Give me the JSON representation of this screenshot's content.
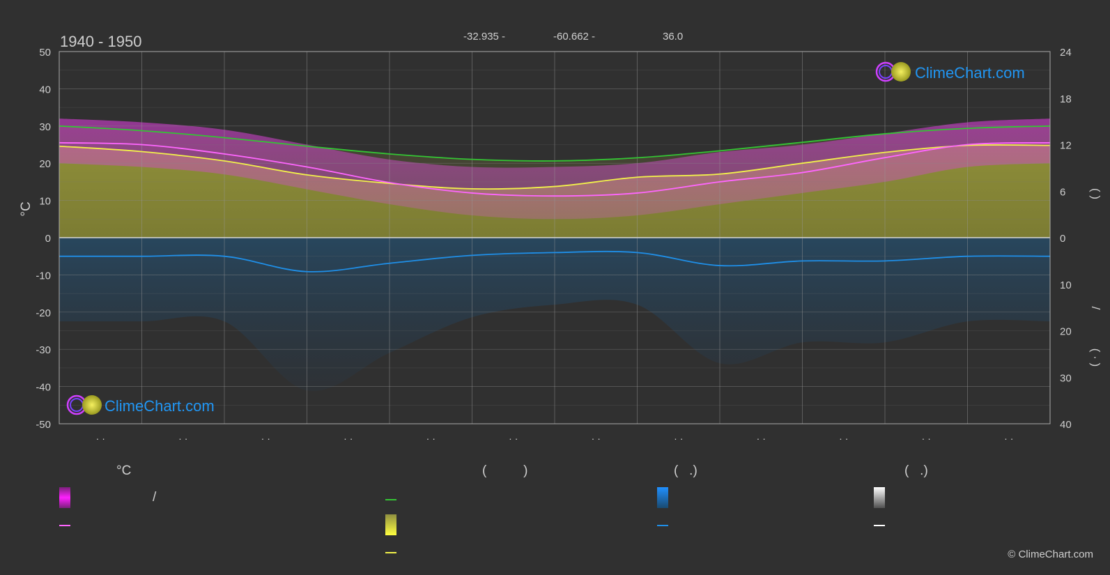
{
  "header": {
    "period": "1940 - 1950",
    "latitude": "-32.935 -",
    "longitude": "-60.662 -",
    "elevation": "36.0"
  },
  "logo": {
    "text": "ClimeChart.com"
  },
  "copyright": "© ClimeChart.com",
  "axes": {
    "left_label": "°C",
    "left_ticks": [
      50,
      40,
      30,
      20,
      10,
      0,
      -10,
      -20,
      -30,
      -40,
      -50
    ],
    "right_top_ticks": [
      24,
      18,
      12,
      6,
      0
    ],
    "right_bottom_ticks": [
      10,
      20,
      30,
      40
    ],
    "right_top_label": "(   )",
    "right_bottom_label": "(  ·  )",
    "right_slash": "/",
    "month_tick_label": "· ·"
  },
  "legend": {
    "col1_header": "°C",
    "col1_slash": "/",
    "col2_header": "(          )",
    "col3_header": "(   .)",
    "col4_header": "(   .)"
  },
  "colors": {
    "background": "#303030",
    "daylight": "#34c534",
    "sunshine": "#f2f24a",
    "temp_mean": "#ff66ff",
    "temp_range": "#e040e0",
    "precip": "#1f8fe8",
    "snow": "#ffffff",
    "logo": "#2196f3"
  },
  "chart_data": {
    "type": "line",
    "x_months": 12,
    "ylim_left": [
      -50,
      50
    ],
    "ylim_right_top": [
      0,
      24
    ],
    "ylim_right_bottom": [
      0,
      40
    ],
    "series": [
      {
        "key": "daylight",
        "x": [
          0,
          1,
          2,
          3,
          4,
          5,
          6,
          7,
          8,
          9,
          10,
          11,
          12
        ],
        "values": [
          14.4,
          13.8,
          12.9,
          11.8,
          10.8,
          10.1,
          9.9,
          10.3,
          11.2,
          12.3,
          13.4,
          14.1,
          14.4
        ]
      },
      {
        "key": "sunshine",
        "x": [
          0,
          1,
          2,
          3,
          4,
          5,
          6,
          7,
          8,
          9,
          10,
          11,
          12
        ],
        "values": [
          11.8,
          11.1,
          9.9,
          8.1,
          7.0,
          6.3,
          6.6,
          7.8,
          8.2,
          9.6,
          11.0,
          11.9,
          11.9
        ]
      },
      {
        "key": "temp_mean",
        "x": [
          0,
          1,
          2,
          3,
          4,
          5,
          6,
          7,
          8,
          9,
          10,
          11,
          12
        ],
        "values": [
          25.5,
          25.0,
          22.5,
          19.0,
          14.8,
          12.0,
          11.2,
          12.0,
          15.0,
          17.5,
          21.5,
          25.0,
          25.5
        ]
      },
      {
        "key": "precip",
        "x": [
          0,
          1,
          2,
          3,
          4,
          5,
          6,
          7,
          8,
          9,
          10,
          11,
          12
        ],
        "values": [
          4.0,
          4.0,
          4.0,
          7.3,
          5.5,
          3.8,
          3.2,
          3.2,
          6.0,
          5.0,
          5.0,
          4.0,
          4.0
        ]
      }
    ],
    "temp_band": {
      "x": [
        0,
        1,
        2,
        3,
        4,
        5,
        6,
        7,
        8,
        9,
        10,
        11,
        12
      ],
      "low": [
        20,
        19,
        17,
        13,
        9,
        6,
        5,
        6,
        9,
        12,
        15,
        19,
        20
      ],
      "high": [
        32,
        31,
        29,
        25,
        21,
        19,
        19,
        20,
        23,
        25,
        28,
        31,
        32
      ]
    }
  }
}
